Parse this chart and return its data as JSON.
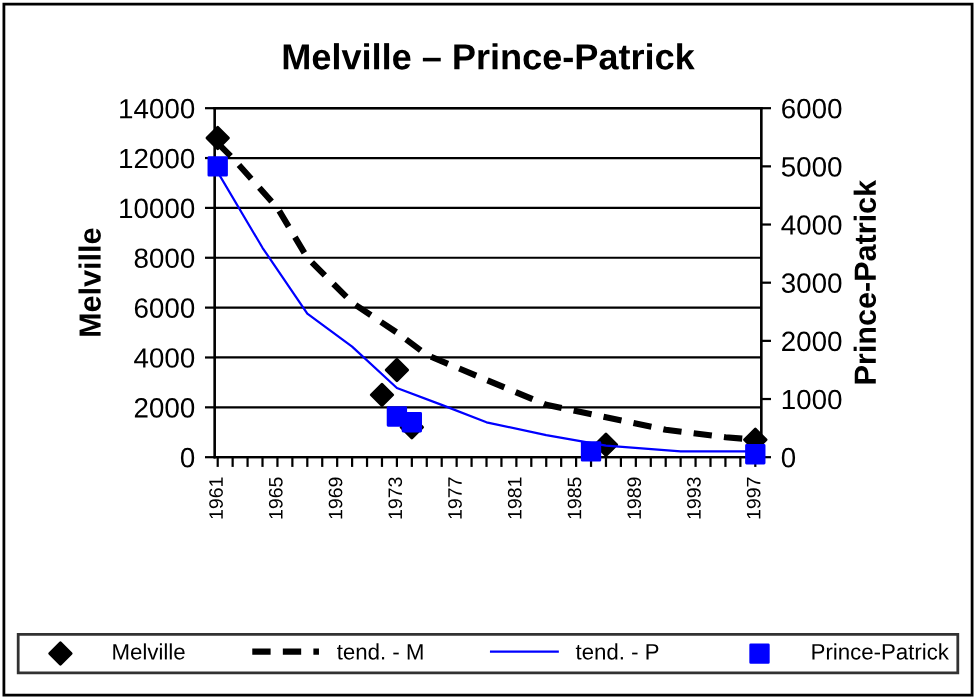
{
  "chart_data": {
    "type": "scatter",
    "title": "Melville – Prince-Patrick",
    "ylabel": "Melville",
    "y2label": "Prince-Patrick",
    "xlim": [
      1960.8,
      1997.4
    ],
    "xticks": [
      {
        "value": 1961,
        "label": "1961"
      },
      {
        "value": 1962,
        "label": null
      },
      {
        "value": 1963,
        "label": null
      },
      {
        "value": 1964,
        "label": null
      },
      {
        "value": 1965,
        "label": "1965"
      },
      {
        "value": 1966,
        "label": null
      },
      {
        "value": 1967,
        "label": null
      },
      {
        "value": 1968,
        "label": null
      },
      {
        "value": 1969,
        "label": "1969"
      },
      {
        "value": 1970,
        "label": null
      },
      {
        "value": 1971,
        "label": null
      },
      {
        "value": 1972,
        "label": null
      },
      {
        "value": 1973,
        "label": "1973"
      },
      {
        "value": 1974,
        "label": null
      },
      {
        "value": 1975,
        "label": null
      },
      {
        "value": 1976,
        "label": null
      },
      {
        "value": 1977,
        "label": "1977"
      },
      {
        "value": 1978,
        "label": null
      },
      {
        "value": 1979,
        "label": null
      },
      {
        "value": 1980,
        "label": null
      },
      {
        "value": 1981,
        "label": "1981"
      },
      {
        "value": 1982,
        "label": null
      },
      {
        "value": 1983,
        "label": null
      },
      {
        "value": 1984,
        "label": null
      },
      {
        "value": 1985,
        "label": "1985"
      },
      {
        "value": 1986,
        "label": null
      },
      {
        "value": 1987,
        "label": null
      },
      {
        "value": 1988,
        "label": null
      },
      {
        "value": 1989,
        "label": "1989"
      },
      {
        "value": 1990,
        "label": null
      },
      {
        "value": 1991,
        "label": null
      },
      {
        "value": 1992,
        "label": null
      },
      {
        "value": 1993,
        "label": "1993"
      },
      {
        "value": 1994,
        "label": null
      },
      {
        "value": 1995,
        "label": null
      },
      {
        "value": 1996,
        "label": null
      },
      {
        "value": 1997,
        "label": "1997"
      }
    ],
    "ylim": [
      0,
      14000
    ],
    "yticks": [
      0,
      2000,
      4000,
      6000,
      8000,
      10000,
      12000,
      14000
    ],
    "y2lim": [
      0,
      6000
    ],
    "y2ticks": [
      0,
      1000,
      2000,
      3000,
      4000,
      5000,
      6000
    ],
    "grid": "y",
    "legend": "bottom",
    "series": [
      {
        "name": "Melville",
        "marker": "diamond",
        "color": "#000000",
        "x": [
          1961,
          1972,
          1973,
          1974,
          1987,
          1997
        ],
        "values": [
          12800,
          2500,
          3500,
          1200,
          500,
          700
        ]
      },
      {
        "name": "tend. - M",
        "type": "line",
        "line_style": "dashed",
        "color": "#000000",
        "x": [
          1961,
          1962,
          1965,
          1967,
          1970,
          1973,
          1975,
          1979,
          1983,
          1987,
          1991,
          1995,
          1997
        ],
        "values": [
          12600,
          12000,
          10000,
          8000,
          6200,
          5000,
          4100,
          3100,
          2100,
          1600,
          1100,
          800,
          700
        ]
      },
      {
        "name": "tend. - P",
        "type": "line",
        "line_style": "solid",
        "axis": "y2",
        "color": "#0000ff",
        "x": [
          1961,
          1964,
          1967,
          1970,
          1973,
          1976,
          1979,
          1983,
          1987,
          1992,
          1997
        ],
        "values": [
          4900,
          3600,
          2470,
          1900,
          1190,
          900,
          600,
          380,
          200,
          100,
          100
        ]
      },
      {
        "name": "Prince-Patrick",
        "marker": "square",
        "axis": "y2",
        "color": "#0000ff",
        "x": [
          1961,
          1973,
          1974,
          1986,
          1997
        ],
        "values": [
          5000,
          700,
          600,
          100,
          50
        ]
      }
    ]
  }
}
